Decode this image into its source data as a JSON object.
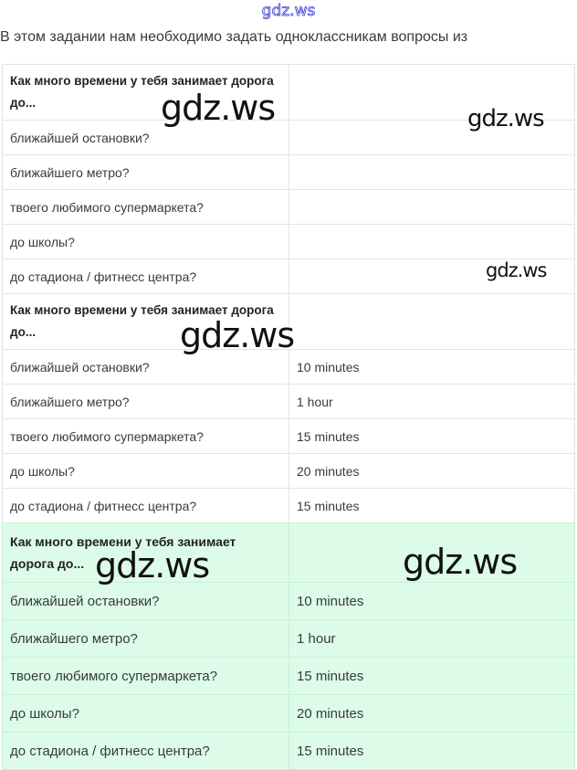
{
  "site_label": "gdz.ws",
  "intro": "В этом задании нам необходимо задать одноклассникам вопросы из",
  "watermark": "gdz.ws",
  "tables": [
    {
      "header": "Как много времени у тебя занимает дорога до...",
      "rows": [
        {
          "q": "ближайшей остановки?",
          "a": ""
        },
        {
          "q": "ближайшего метро?",
          "a": ""
        },
        {
          "q": "твоего любимого супермаркета?",
          "a": ""
        },
        {
          "q": "до школы?",
          "a": ""
        },
        {
          "q": "до стадиона / фитнесс центра?",
          "a": ""
        }
      ]
    },
    {
      "header": "Как много времени у тебя занимает дорога до...",
      "rows": [
        {
          "q": "ближайшей остановки?",
          "a": "10 minutes"
        },
        {
          "q": "ближайшего метро?",
          "a": "1 hour"
        },
        {
          "q": "твоего любимого супермаркета?",
          "a": "15 minutes"
        },
        {
          "q": "до школы?",
          "a": "20 minutes"
        },
        {
          "q": "до стадиона / фитнесс центра?",
          "a": "15 minutes"
        }
      ]
    },
    {
      "header": "Как много времени у тебя занимает дорога до...",
      "rows": [
        {
          "q": "ближайшей остановки?",
          "a": "10 minutes"
        },
        {
          "q": "ближайшего метро?",
          "a": "1 hour"
        },
        {
          "q": "твоего любимого супермаркета?",
          "a": "15 minutes"
        },
        {
          "q": "до школы?",
          "a": "20 minutes"
        },
        {
          "q": "до стадиона / фитнесс центра?",
          "a": "15 minutes"
        }
      ]
    }
  ]
}
